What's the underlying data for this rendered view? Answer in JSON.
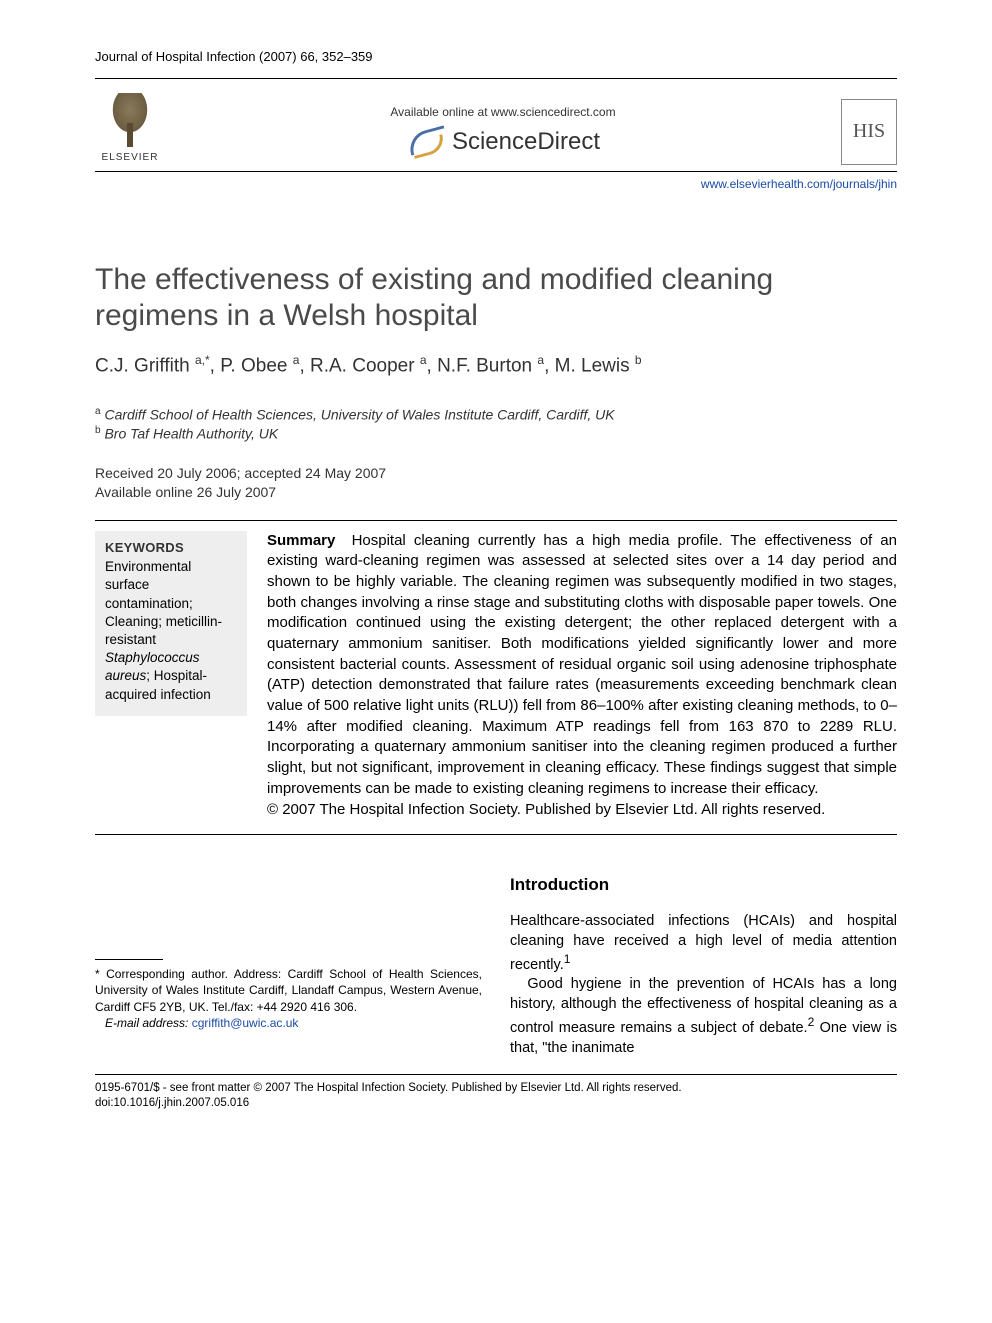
{
  "journal_ref": "Journal of Hospital Infection (2007) 66, 352–359",
  "header": {
    "elsevier": "ELSEVIER",
    "available": "Available online at www.sciencedirect.com",
    "sd": "ScienceDirect",
    "his": "HIS"
  },
  "journal_link": "www.elsevierhealth.com/journals/jhin",
  "title": "The effectiveness of existing and modified cleaning regimens in a Welsh hospital",
  "authors_html": "C.J. Griffith <sup>a,*</sup>, P. Obee <sup>a</sup>, R.A. Cooper <sup>a</sup>, N.F. Burton <sup>a</sup>, M. Lewis <sup>b</sup>",
  "affiliations": [
    {
      "sup": "a",
      "text": "Cardiff School of Health Sciences, University of Wales Institute Cardiff, Cardiff, UK"
    },
    {
      "sup": "b",
      "text": "Bro Taf Health Authority, UK"
    }
  ],
  "dates_line1": "Received 20 July 2006; accepted 24 May 2007",
  "dates_line2": "Available online 26 July 2007",
  "keywords_head": "KEYWORDS",
  "keywords_html": "Environmental surface contamination; Cleaning; meticillin-resistant <em>Staphylococcus aureus</em>; Hospital-acquired infection",
  "summary_label": "Summary",
  "summary_body": "Hospital cleaning currently has a high media profile. The effectiveness of an existing ward-cleaning regimen was assessed at selected sites over a 14 day period and shown to be highly variable. The cleaning regimen was subsequently modified in two stages, both changes involving a rinse stage and substituting cloths with disposable paper towels. One modification continued using the existing detergent; the other replaced detergent with a quaternary ammonium sanitiser. Both modifications yielded significantly lower and more consistent bacterial counts. Assessment of residual organic soil using adenosine triphosphate (ATP) detection demonstrated that failure rates (measurements exceeding benchmark clean value of 500 relative light units (RLU)) fell from 86–100% after existing cleaning methods, to 0–14% after modified cleaning. Maximum ATP readings fell from 163 870 to 2289 RLU. Incorporating a quaternary ammonium sanitiser into the cleaning regimen produced a further slight, but not significant, improvement in cleaning efficacy. These findings suggest that simple improvements can be made to existing cleaning regimens to increase their efficacy.",
  "copyright_line": "© 2007 The Hospital Infection Society. Published by Elsevier Ltd. All rights reserved.",
  "intro_head": "Introduction",
  "intro_p1": "Healthcare-associated infections (HCAIs) and hospital cleaning have received a high level of media attention recently.",
  "intro_p1_ref": "1",
  "intro_p2a": "Good hygiene in the prevention of HCAIs has a long history, although the effectiveness of hospital cleaning as a control measure remains a subject of debate.",
  "intro_p2_ref": "2",
  "intro_p2b": " One view is that, \"the inanimate",
  "footnote_corr": "* Corresponding author. Address: Cardiff School of Health Sciences, University of Wales Institute Cardiff, Llandaff Campus, Western Avenue, Cardiff CF5 2YB, UK. Tel./fax: +44 2920 416 306.",
  "footnote_email_label": "E-mail address:",
  "footnote_email": "cgriffith@uwic.ac.uk",
  "footer_line1": "0195-6701/$ - see front matter © 2007 The Hospital Infection Society. Published by Elsevier Ltd. All rights reserved.",
  "footer_line2": "doi:10.1016/j.jhin.2007.05.016"
}
